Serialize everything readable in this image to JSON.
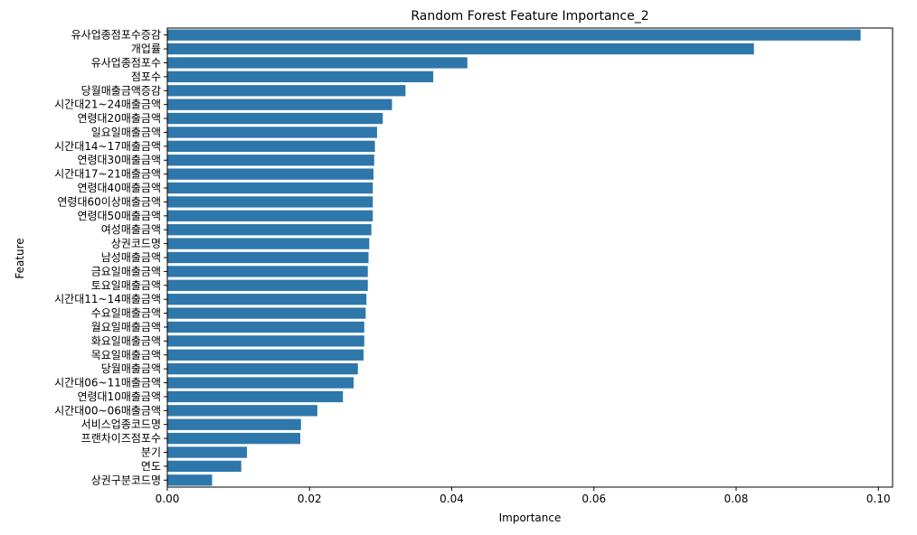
{
  "chart_data": {
    "type": "bar",
    "orientation": "horizontal",
    "title": "Random Forest Feature Importance_2",
    "xlabel": "Importance",
    "ylabel": "Feature",
    "xlim": [
      0,
      0.102
    ],
    "xticks": [
      "0.00",
      "0.02",
      "0.04",
      "0.06",
      "0.08",
      "0.10"
    ],
    "bar_color": "#2e77ab",
    "grid": false,
    "categories": [
      "유사업종점포수증감",
      "개업률",
      "유사업종점포수",
      "점포수",
      "당월매출금액증감",
      "시간대21~24매출금액",
      "연령대20매출금액",
      "일요일매출금액",
      "시간대14~17매출금액",
      "연령대30매출금액",
      "시간대17~21매출금액",
      "연령대40매출금액",
      "연령대60이상매출금액",
      "연령대50매출금액",
      "여성매출금액",
      "상권코드명",
      "남성매출금액",
      "금요일매출금액",
      "토요일매출금액",
      "시간대11~14매출금액",
      "수요일매출금액",
      "월요일매출금액",
      "화요일매출금액",
      "목요일매출금액",
      "당월매출금액",
      "시간대06~11매출금액",
      "연령대10매출금액",
      "시간대00~06매출금액",
      "서비스업종코드명",
      "프랜차이즈점포수",
      "분기",
      "연도",
      "상권구분코드명"
    ],
    "values": [
      0.0975,
      0.0825,
      0.0422,
      0.0374,
      0.0335,
      0.0316,
      0.0303,
      0.0295,
      0.0292,
      0.0291,
      0.029,
      0.0289,
      0.0289,
      0.0289,
      0.0287,
      0.0284,
      0.0283,
      0.0282,
      0.0282,
      0.028,
      0.0279,
      0.0277,
      0.0277,
      0.0276,
      0.0268,
      0.0262,
      0.0247,
      0.0211,
      0.0188,
      0.0187,
      0.0112,
      0.0104,
      0.0063
    ]
  }
}
